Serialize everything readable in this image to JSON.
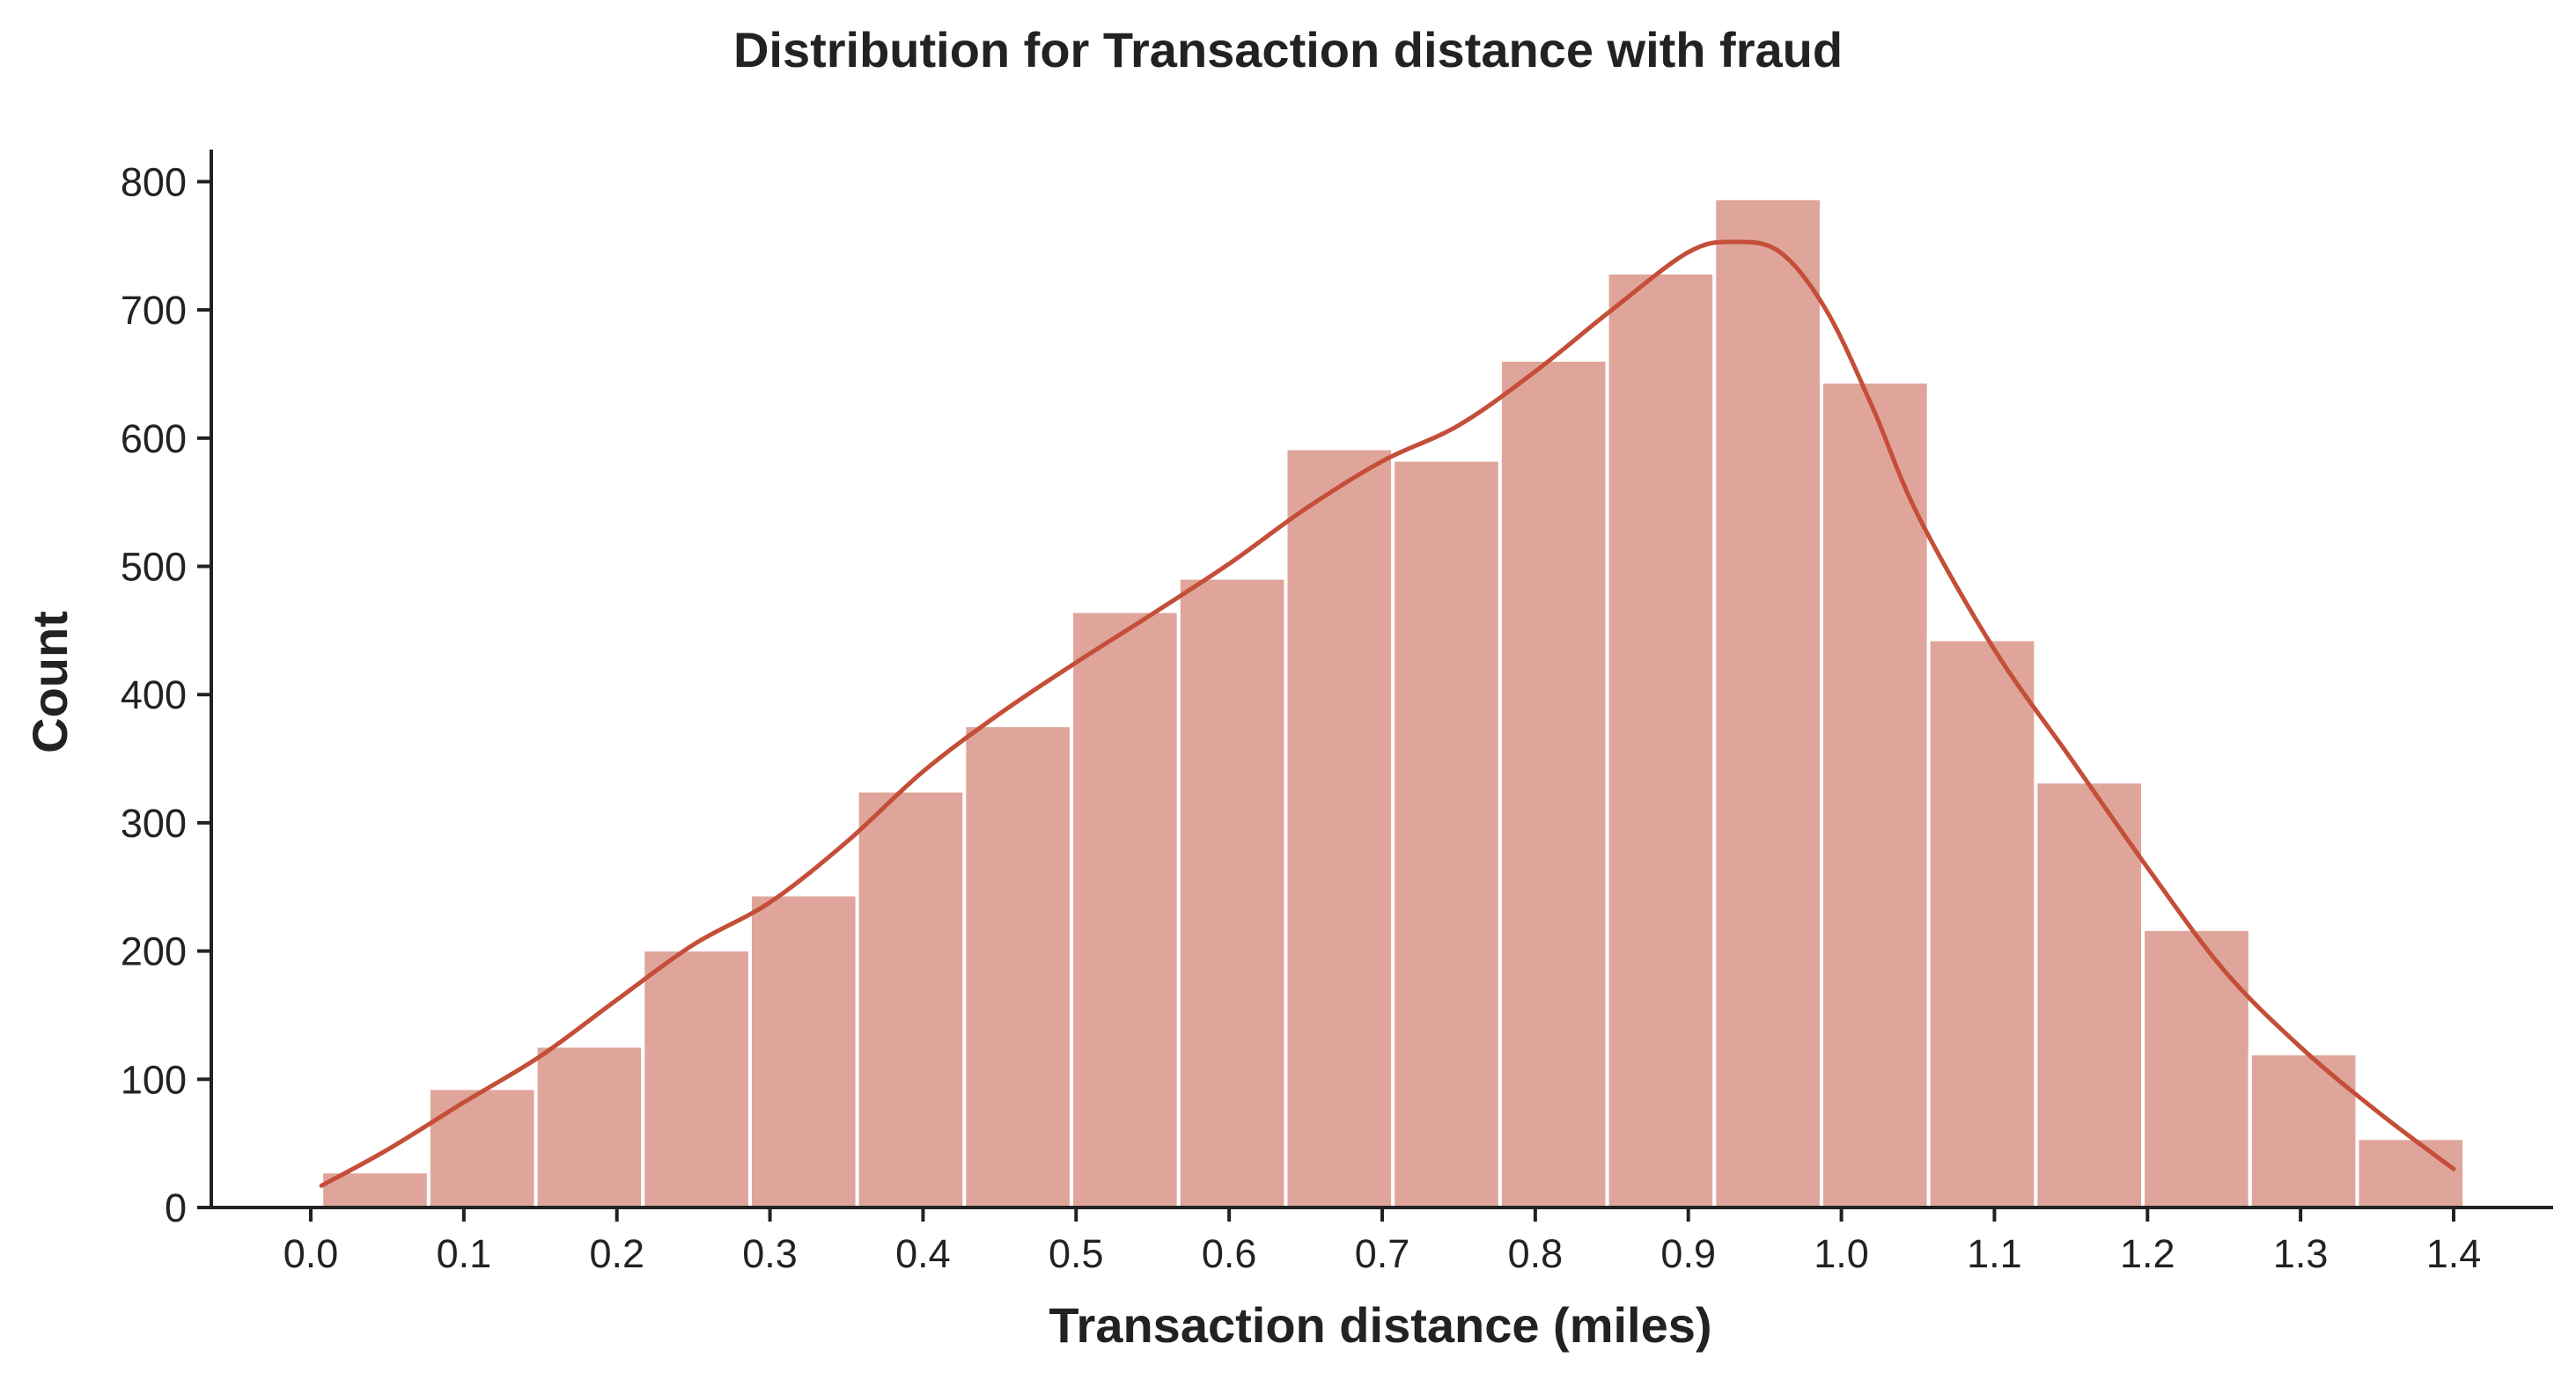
{
  "chart_data": {
    "type": "bar",
    "subtype": "histogram-with-kde",
    "title": "Distribution for Transaction distance with fraud",
    "xlabel": "Transaction distance (miles)",
    "ylabel": "Count",
    "xlim": [
      -0.065,
      1.465
    ],
    "ylim": [
      0,
      825
    ],
    "xticks": [
      0.0,
      0.1,
      0.2,
      0.3,
      0.4,
      0.5,
      0.6,
      0.7,
      0.8,
      0.9,
      1.0,
      1.1,
      1.2,
      1.3,
      1.4
    ],
    "xtick_labels": [
      "0.0",
      "0.1",
      "0.2",
      "0.3",
      "0.4",
      "0.5",
      "0.6",
      "0.7",
      "0.8",
      "0.9",
      "1.0",
      "1.1",
      "1.2",
      "1.3",
      "1.4"
    ],
    "yticks": [
      0,
      100,
      200,
      300,
      400,
      500,
      600,
      700,
      800
    ],
    "ytick_labels": [
      "0",
      "100",
      "200",
      "300",
      "400",
      "500",
      "600",
      "700",
      "800"
    ],
    "bin_edges": [
      0.007,
      0.077,
      0.147,
      0.217,
      0.287,
      0.357,
      0.427,
      0.497,
      0.567,
      0.637,
      0.707,
      0.777,
      0.847,
      0.917,
      0.987,
      1.057,
      1.127,
      1.197,
      1.267,
      1.337,
      1.407
    ],
    "values": [
      28,
      93,
      126,
      201,
      244,
      325,
      376,
      465,
      491,
      592,
      583,
      661,
      729,
      787,
      644,
      443,
      332,
      217,
      120,
      54
    ],
    "kde": {
      "x": [
        0.007,
        0.05,
        0.1,
        0.15,
        0.2,
        0.25,
        0.3,
        0.35,
        0.4,
        0.45,
        0.5,
        0.55,
        0.6,
        0.65,
        0.7,
        0.75,
        0.8,
        0.85,
        0.9,
        0.93,
        0.96,
        0.99,
        1.02,
        1.05,
        1.1,
        1.15,
        1.2,
        1.25,
        1.3,
        1.35,
        1.4
      ],
      "y": [
        17,
        45,
        82,
        118,
        162,
        205,
        238,
        285,
        340,
        385,
        425,
        463,
        502,
        545,
        582,
        610,
        652,
        700,
        745,
        753,
        745,
        700,
        625,
        540,
        435,
        350,
        265,
        185,
        125,
        75,
        30
      ]
    },
    "colors": {
      "bar": "#dfa59b",
      "kde": "#c44e38"
    },
    "grid": false,
    "legend": "none"
  }
}
